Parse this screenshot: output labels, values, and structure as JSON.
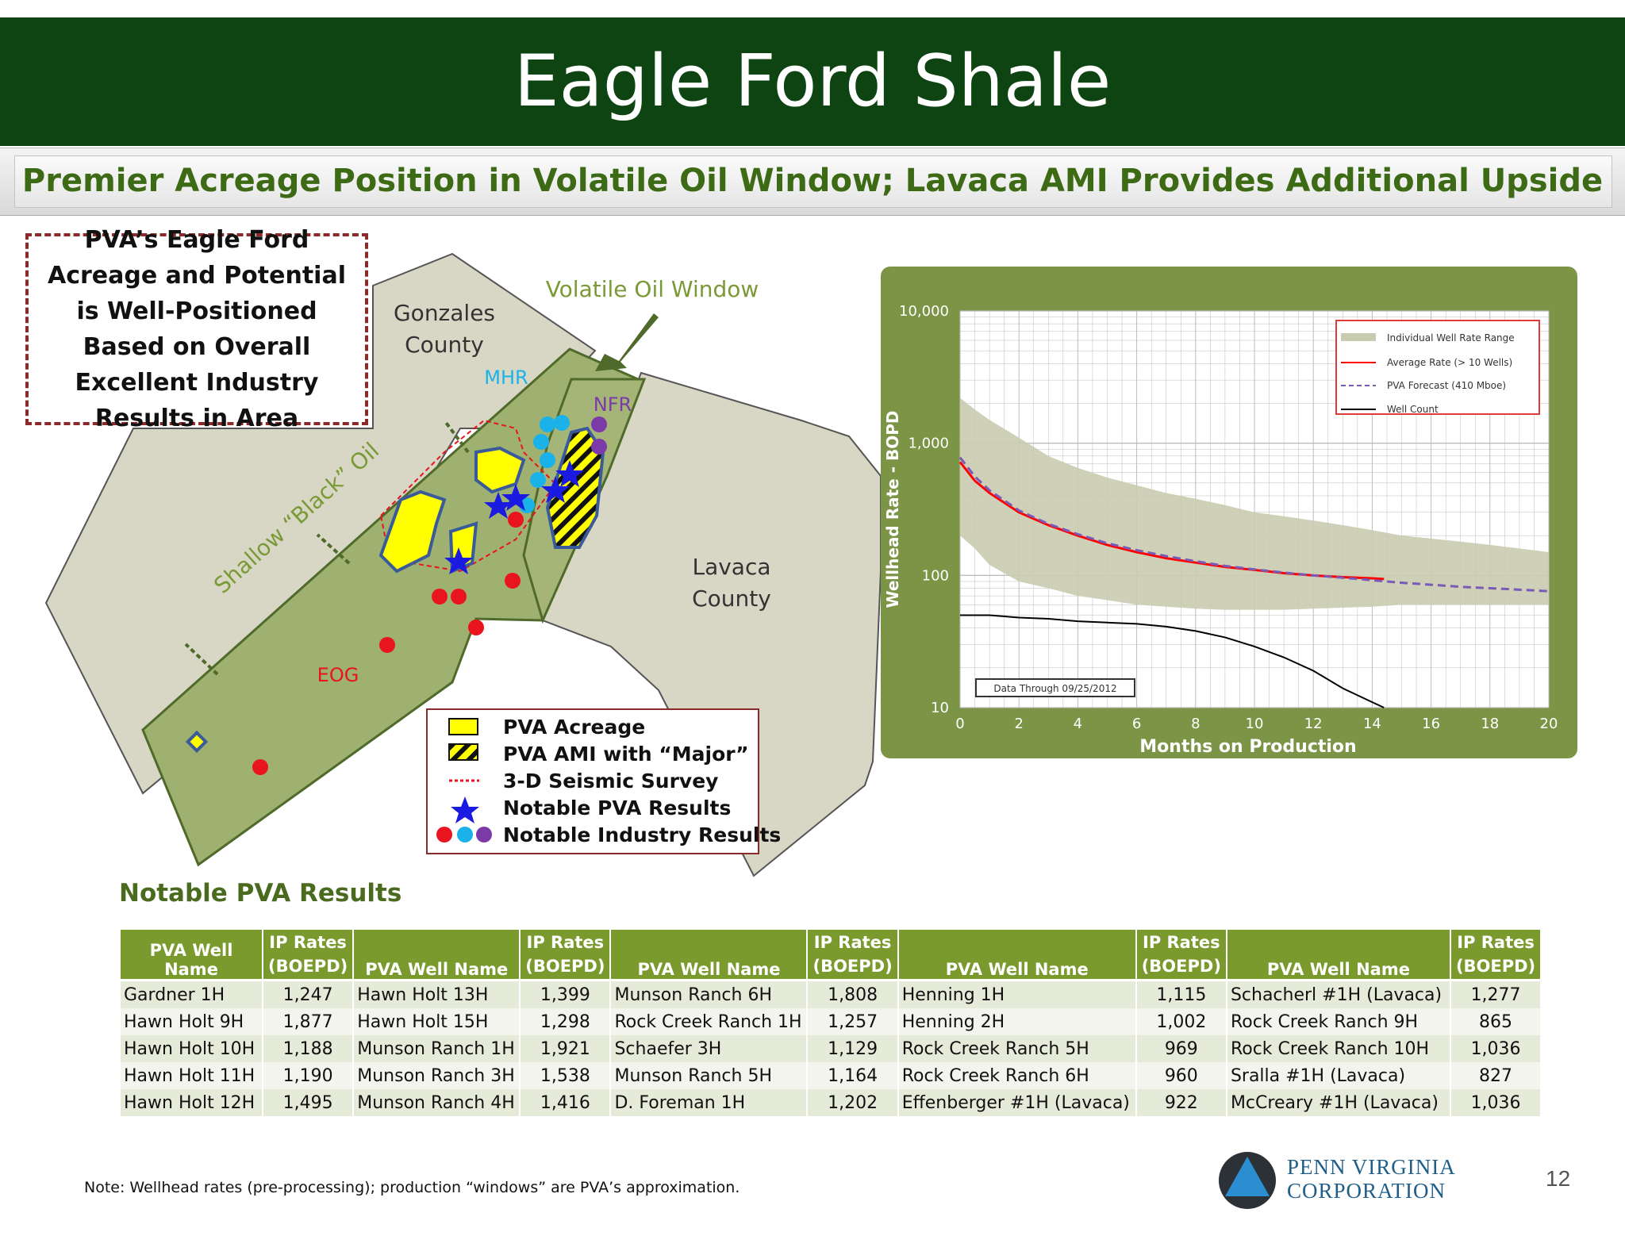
{
  "title": "Eagle Ford Shale",
  "subtitle": "Premier Acreage Position in Volatile Oil Window; Lavaca AMI Provides Additional Upside",
  "callout": "PVA’s Eagle Ford Acreage and Potential is Well-Positioned Based on Overall Excellent Industry Results in Area",
  "map": {
    "labels": {
      "gonzales": "Gonzales",
      "gonzales2": "County",
      "volatile": "Volatile Oil Window",
      "mhr": "MHR",
      "nfr": "NFR",
      "shallow": "Shallow “Black” Oil",
      "lavaca": "Lavaca",
      "lavaca2": "County",
      "eog": "EOG"
    },
    "legend": [
      {
        "label": "PVA Acreage"
      },
      {
        "label": "PVA AMI with “Major”"
      },
      {
        "label": "3-D Seismic Survey"
      },
      {
        "label": "Notable PVA Results"
      },
      {
        "label": "Notable Industry Results"
      }
    ],
    "colors": {
      "acreage": "#ffff00",
      "outline": "#3a5a9a",
      "eog": "#e8141e",
      "mhr": "#1ab2e8",
      "nfr": "#7b3aa8",
      "pva_star": "#1a1ae0",
      "window": "#9fb170",
      "land": "#d8d7c6"
    }
  },
  "chart_data": {
    "type": "line",
    "ylabel": "Wellhead Rate - BOPD",
    "xlabel": "Months on Production",
    "x_ticks": [
      "0",
      "2",
      "4",
      "6",
      "8",
      "10",
      "12",
      "14",
      "16",
      "18",
      "20"
    ],
    "y_ticks": [
      "10",
      "100",
      "1,000",
      "10,000"
    ],
    "xlim": [
      0,
      20
    ],
    "ylim": [
      10,
      10000
    ],
    "y_scale": "log",
    "legend_placement": "top-right",
    "note": "Data Through 09/25/2012",
    "series": [
      {
        "name": "Individual Well Rate Range",
        "color": "#c9cbb0",
        "x": [
          0,
          0.5,
          1,
          2,
          3,
          4,
          5,
          6,
          7,
          8,
          9,
          10,
          11,
          12,
          13,
          14,
          15,
          16,
          17,
          18,
          19,
          20
        ],
        "low": [
          200,
          160,
          120,
          90,
          80,
          70,
          65,
          60,
          58,
          56,
          55,
          55,
          55,
          56,
          57,
          58,
          60,
          60,
          60,
          60,
          60,
          60
        ],
        "high": [
          2200,
          1800,
          1500,
          1100,
          800,
          650,
          550,
          480,
          420,
          380,
          340,
          300,
          280,
          260,
          240,
          220,
          200,
          190,
          180,
          170,
          160,
          150
        ]
      },
      {
        "name": "Average Rate (> 10 Wells)",
        "color": "#ff0000",
        "x": [
          0,
          0.5,
          1,
          2,
          3,
          4,
          5,
          6,
          7,
          8,
          9,
          10,
          11,
          12,
          13,
          14,
          14.4
        ],
        "y": [
          720,
          520,
          420,
          300,
          240,
          200,
          170,
          150,
          135,
          125,
          116,
          110,
          104,
          100,
          97,
          95,
          94
        ]
      },
      {
        "name": "PVA Forecast (410 Mboe)",
        "color": "#7a5ab8",
        "x": [
          0,
          0.5,
          1,
          2,
          3,
          4,
          5,
          6,
          7,
          8,
          9,
          10,
          11,
          12,
          13,
          14,
          15,
          16,
          17,
          18,
          19,
          20
        ],
        "y": [
          780,
          560,
          440,
          310,
          245,
          205,
          175,
          155,
          140,
          128,
          118,
          111,
          105,
          100,
          96,
          92,
          88,
          85,
          82,
          80,
          78,
          76
        ]
      },
      {
        "name": "Well Count",
        "color": "#000000",
        "x": [
          0,
          1,
          2,
          3,
          4,
          5,
          6,
          7,
          8,
          9,
          10,
          11,
          12,
          13,
          14,
          14.4
        ],
        "y": [
          50,
          50,
          48,
          47,
          45,
          44,
          43,
          41,
          38,
          34,
          29,
          24,
          19,
          14,
          11,
          10
        ]
      }
    ]
  },
  "results": {
    "title": "Notable PVA Results",
    "headers": {
      "name": "PVA Well Name",
      "ip1": "IP Rates",
      "ip2": "(BOEPD)"
    },
    "rows": [
      [
        [
          "Gardner 1H",
          "1,247"
        ],
        [
          "Hawn Holt 13H",
          "1,399"
        ],
        [
          "Munson Ranch 6H",
          "1,808"
        ],
        [
          "Henning 1H",
          "1,115"
        ],
        [
          "Schacherl #1H (Lavaca)",
          "1,277"
        ]
      ],
      [
        [
          "Hawn Holt 9H",
          "1,877"
        ],
        [
          "Hawn Holt 15H",
          "1,298"
        ],
        [
          "Rock Creek Ranch 1H",
          "1,257"
        ],
        [
          "Henning 2H",
          "1,002"
        ],
        [
          "Rock Creek Ranch 9H",
          "865"
        ]
      ],
      [
        [
          "Hawn Holt 10H",
          "1,188"
        ],
        [
          "Munson Ranch 1H",
          "1,921"
        ],
        [
          "Schaefer 3H",
          "1,129"
        ],
        [
          "Rock Creek Ranch 5H",
          "969"
        ],
        [
          "Rock Creek Ranch 10H",
          "1,036"
        ]
      ],
      [
        [
          "Hawn Holt 11H",
          "1,190"
        ],
        [
          "Munson Ranch 3H",
          "1,538"
        ],
        [
          "Munson Ranch 5H",
          "1,164"
        ],
        [
          "Rock Creek Ranch 6H",
          "960"
        ],
        [
          "Sralla #1H  (Lavaca)",
          "827"
        ]
      ],
      [
        [
          "Hawn Holt 12H",
          "1,495"
        ],
        [
          "Munson Ranch 4H",
          "1,416"
        ],
        [
          "D. Foreman 1H",
          "1,202"
        ],
        [
          "Effenberger #1H (Lavaca)",
          "922"
        ],
        [
          "McCreary #1H (Lavaca)",
          "1,036"
        ]
      ]
    ]
  },
  "note": "Note: Wellhead rates (pre-processing); production “windows” are PVA’s approximation.",
  "logo": {
    "line1": "PENN VIRGINIA",
    "line2": "CORPORATION",
    "colors": {
      "dark": "#2b3136",
      "accent": "#2a8ed0"
    }
  },
  "page_number": "12"
}
